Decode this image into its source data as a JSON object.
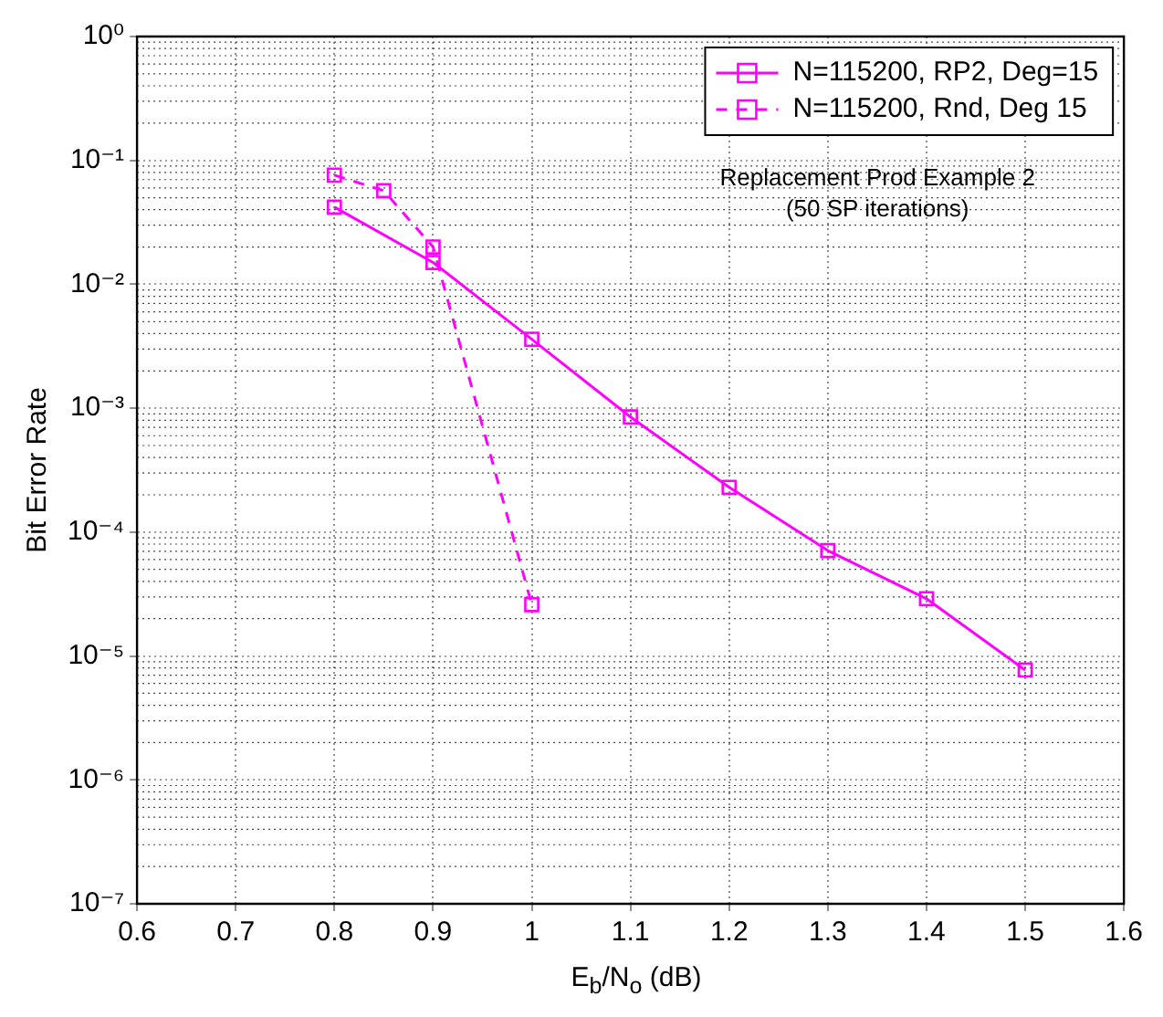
{
  "chart_data": {
    "type": "line",
    "xlabel": "E$_{b}$/N$_{o}$ (dB)",
    "ylabel": "Bit Error Rate",
    "annotations": [
      "Replacement Prod Example 2\n(50 SP iterations)"
    ],
    "log": "y",
    "grid": true,
    "legend": "top right",
    "marker": "square",
    "xlim": [
      0.6,
      1.6
    ],
    "xticks": [
      0.6,
      0.7,
      0.8,
      0.9,
      1,
      1.1,
      1.2,
      1.3,
      1.4,
      1.5,
      1.6
    ],
    "ylim": [
      1e-07,
      1
    ],
    "yticks": [
      {
        "value": 1e-07,
        "label": "10⁻⁷"
      },
      {
        "value": 1e-06,
        "label": "10⁻⁶"
      },
      {
        "value": 1e-05,
        "label": "10⁻⁵"
      },
      {
        "value": 0.0001,
        "label": "10⁻⁴"
      },
      {
        "value": 0.001,
        "label": "10⁻³"
      },
      {
        "value": 0.01,
        "label": "10⁻²"
      },
      {
        "value": 0.1,
        "label": "10⁻¹"
      },
      {
        "value": 1,
        "label": "10⁰"
      }
    ],
    "series": [
      {
        "name": "N=115200, RP2, Deg=15",
        "color": "#ff00ff",
        "line_style": "solid",
        "x": [
          0.8,
          0.9,
          1.0,
          1.1,
          1.2,
          1.3,
          1.4,
          1.5
        ],
        "values": [
          0.042,
          0.015,
          0.0036,
          0.00085,
          0.00023,
          7.1e-05,
          2.9e-05,
          7.7e-06
        ]
      },
      {
        "name": "N=115200, Rnd, Deg 15",
        "color": "#ff00ff",
        "line_style": "dashed",
        "x": [
          0.8,
          0.85,
          0.9,
          1.0
        ],
        "values": [
          0.076,
          0.057,
          0.02,
          2.6e-05
        ]
      }
    ]
  }
}
